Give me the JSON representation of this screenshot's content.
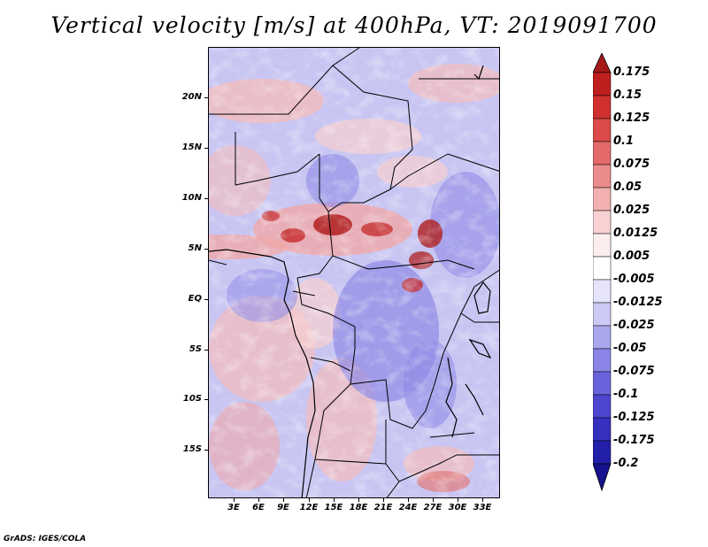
{
  "title": "Vertical velocity [m/s] at 400hPa, VT: 2019091700",
  "latitude_labels": [
    "20N",
    "15N",
    "10N",
    "5N",
    "EQ",
    "5S",
    "10S",
    "15S"
  ],
  "longitude_labels": [
    "3E",
    "6E",
    "9E",
    "12E",
    "15E",
    "18E",
    "21E",
    "24E",
    "27E",
    "30E",
    "33E"
  ],
  "colorbar": {
    "labels": [
      "0.175",
      "0.15",
      "0.125",
      "0.1",
      "0.075",
      "0.05",
      "0.025",
      "0.0125",
      "0.005",
      "-0.005",
      "-0.0125",
      "-0.025",
      "-0.05",
      "-0.075",
      "-0.1",
      "-0.125",
      "-0.175",
      "-0.2"
    ],
    "colors": [
      "#a51919",
      "#be2020",
      "#d03030",
      "#dc4a4a",
      "#e46a6a",
      "#eb8c8c",
      "#f2b0b0",
      "#f8d2d2",
      "#fdeeee",
      "#ffffff",
      "#e6e4fb",
      "#cccaf5",
      "#aaa7ee",
      "#8a85e6",
      "#6a64dc",
      "#4d46cf",
      "#3530bf",
      "#2220a8",
      "#15138e"
    ]
  },
  "credit": "GrADS: IGES/COLA"
}
